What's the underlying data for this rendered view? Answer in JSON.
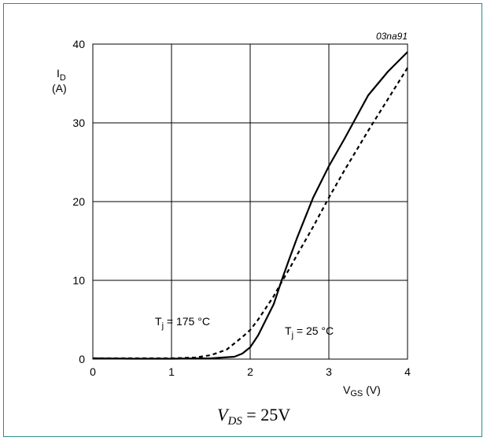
{
  "chart_data": {
    "type": "line",
    "figure_code": "03na91",
    "ylabel": "I",
    "ylabel_sub": "D",
    "ylabel_unit": "(A)",
    "xlabel": "V",
    "xlabel_sub": "GS",
    "xlabel_unit": " (V)",
    "xlim": [
      0,
      4
    ],
    "ylim": [
      0,
      40
    ],
    "xticks": [
      0,
      1,
      2,
      3,
      4
    ],
    "yticks": [
      0,
      10,
      20,
      30,
      40
    ],
    "grid": true,
    "series": [
      {
        "name": "Tj = 25 °C",
        "label_main": "T",
        "label_sub": "j",
        "label_rest": " = 25 °C",
        "style": "solid",
        "color": "#000000",
        "x": [
          0,
          0.5,
          1.0,
          1.5,
          1.8,
          1.9,
          2.0,
          2.1,
          2.2,
          2.3,
          2.4,
          2.5,
          2.6,
          2.8,
          3.0,
          3.2,
          3.5,
          3.75,
          4.0
        ],
        "y": [
          0.1,
          0.05,
          0.05,
          0.1,
          0.3,
          0.7,
          1.5,
          3.0,
          5.0,
          7.0,
          10.0,
          12.8,
          15.5,
          20.5,
          24.5,
          28.0,
          33.5,
          36.5,
          39.0
        ]
      },
      {
        "name": "Tj = 175 °C",
        "label_main": "T",
        "label_sub": "j",
        "label_rest": " = 175 °C",
        "style": "dashed",
        "color": "#000000",
        "x": [
          0,
          0.5,
          1.0,
          1.3,
          1.5,
          1.7,
          1.8,
          1.9,
          2.0,
          2.1,
          2.2,
          2.3,
          2.4,
          2.5,
          2.6,
          2.8,
          3.0,
          3.2,
          3.5,
          3.75,
          4.0
        ],
        "y": [
          0.1,
          0.1,
          0.1,
          0.2,
          0.5,
          1.2,
          2.0,
          2.8,
          3.7,
          5.0,
          6.5,
          8.0,
          9.8,
          11.5,
          13.3,
          16.8,
          20.5,
          24.0,
          29.0,
          33.0,
          37.0
        ]
      }
    ]
  },
  "condition": {
    "main": "V",
    "sub": "DS",
    "rest": " = 25V"
  }
}
